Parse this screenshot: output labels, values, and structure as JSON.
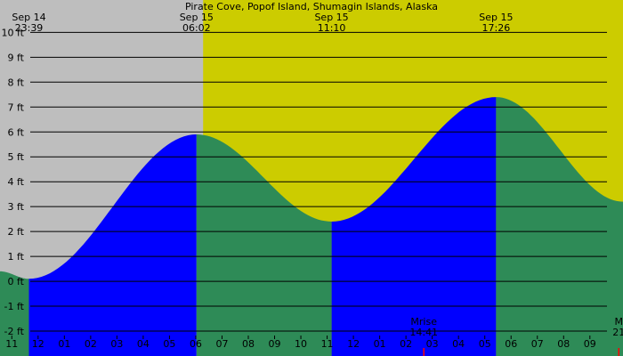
{
  "chart_data": {
    "type": "area",
    "title": "Pirate Cove, Popof Island, Shumagin Islands, Alaska",
    "colors": {
      "night": "#bebebe",
      "day": "#cccc00",
      "rising": "#0000ff",
      "falling": "#2e8b57",
      "gridline": "#000000",
      "moon_marker": "#ff0000"
    },
    "x_unit": "hours since Sep 14 00:00",
    "xlim": [
      22.55,
      46.26
    ],
    "ylim": [
      -3.0,
      11.3
    ],
    "day_period": {
      "start": 30.28,
      "end": 46.26
    },
    "y_ticks": [
      {
        "value": 10,
        "label": "10 ft"
      },
      {
        "value": 9,
        "label": "9 ft"
      },
      {
        "value": 8,
        "label": "8 ft"
      },
      {
        "value": 7,
        "label": "7 ft"
      },
      {
        "value": 6,
        "label": "6 ft"
      },
      {
        "value": 5,
        "label": "5 ft"
      },
      {
        "value": 4,
        "label": "4 ft"
      },
      {
        "value": 3,
        "label": "3 ft"
      },
      {
        "value": 2,
        "label": "2 ft"
      },
      {
        "value": 1,
        "label": "1 ft"
      },
      {
        "value": 0,
        "label": "0 ft"
      },
      {
        "value": -1,
        "label": "-1 ft"
      },
      {
        "value": -2,
        "label": "-2 ft"
      }
    ],
    "x_ticks": [
      {
        "value": 23,
        "label": "11"
      },
      {
        "value": 24,
        "label": "12"
      },
      {
        "value": 25,
        "label": "01"
      },
      {
        "value": 26,
        "label": "02"
      },
      {
        "value": 27,
        "label": "03"
      },
      {
        "value": 28,
        "label": "04"
      },
      {
        "value": 29,
        "label": "05"
      },
      {
        "value": 30,
        "label": "06"
      },
      {
        "value": 31,
        "label": "07"
      },
      {
        "value": 32,
        "label": "08"
      },
      {
        "value": 33,
        "label": "09"
      },
      {
        "value": 34,
        "label": "10"
      },
      {
        "value": 35,
        "label": "11"
      },
      {
        "value": 36,
        "label": "12"
      },
      {
        "value": 37,
        "label": "01"
      },
      {
        "value": 38,
        "label": "02"
      },
      {
        "value": 39,
        "label": "03"
      },
      {
        "value": 40,
        "label": "04"
      },
      {
        "value": 41,
        "label": "05"
      },
      {
        "value": 42,
        "label": "06"
      },
      {
        "value": 43,
        "label": "07"
      },
      {
        "value": 44,
        "label": "08"
      },
      {
        "value": 45,
        "label": "09"
      }
    ],
    "tide_extremes": [
      {
        "date": "Sep 14",
        "time": "23:39",
        "hour": 23.65,
        "height": 0.1,
        "type": "low"
      },
      {
        "date": "Sep 15",
        "time": "06:02",
        "hour": 30.03,
        "height": 5.9,
        "type": "high"
      },
      {
        "date": "Sep 15",
        "time": "11:10",
        "hour": 35.17,
        "height": 2.4,
        "type": "low"
      },
      {
        "date": "Sep 15",
        "time": "17:26",
        "hour": 41.43,
        "height": 7.4,
        "type": "high"
      }
    ],
    "curve_edges": {
      "start": {
        "hour": 22.55,
        "height": 0.4
      },
      "end": {
        "hour": 46.26,
        "height": 3.2
      }
    },
    "moon_events": [
      {
        "label": "Mrise",
        "time": "14:41",
        "hour": 38.68
      },
      {
        "label": "M",
        "time": "21",
        "hour": 46.1
      }
    ]
  }
}
